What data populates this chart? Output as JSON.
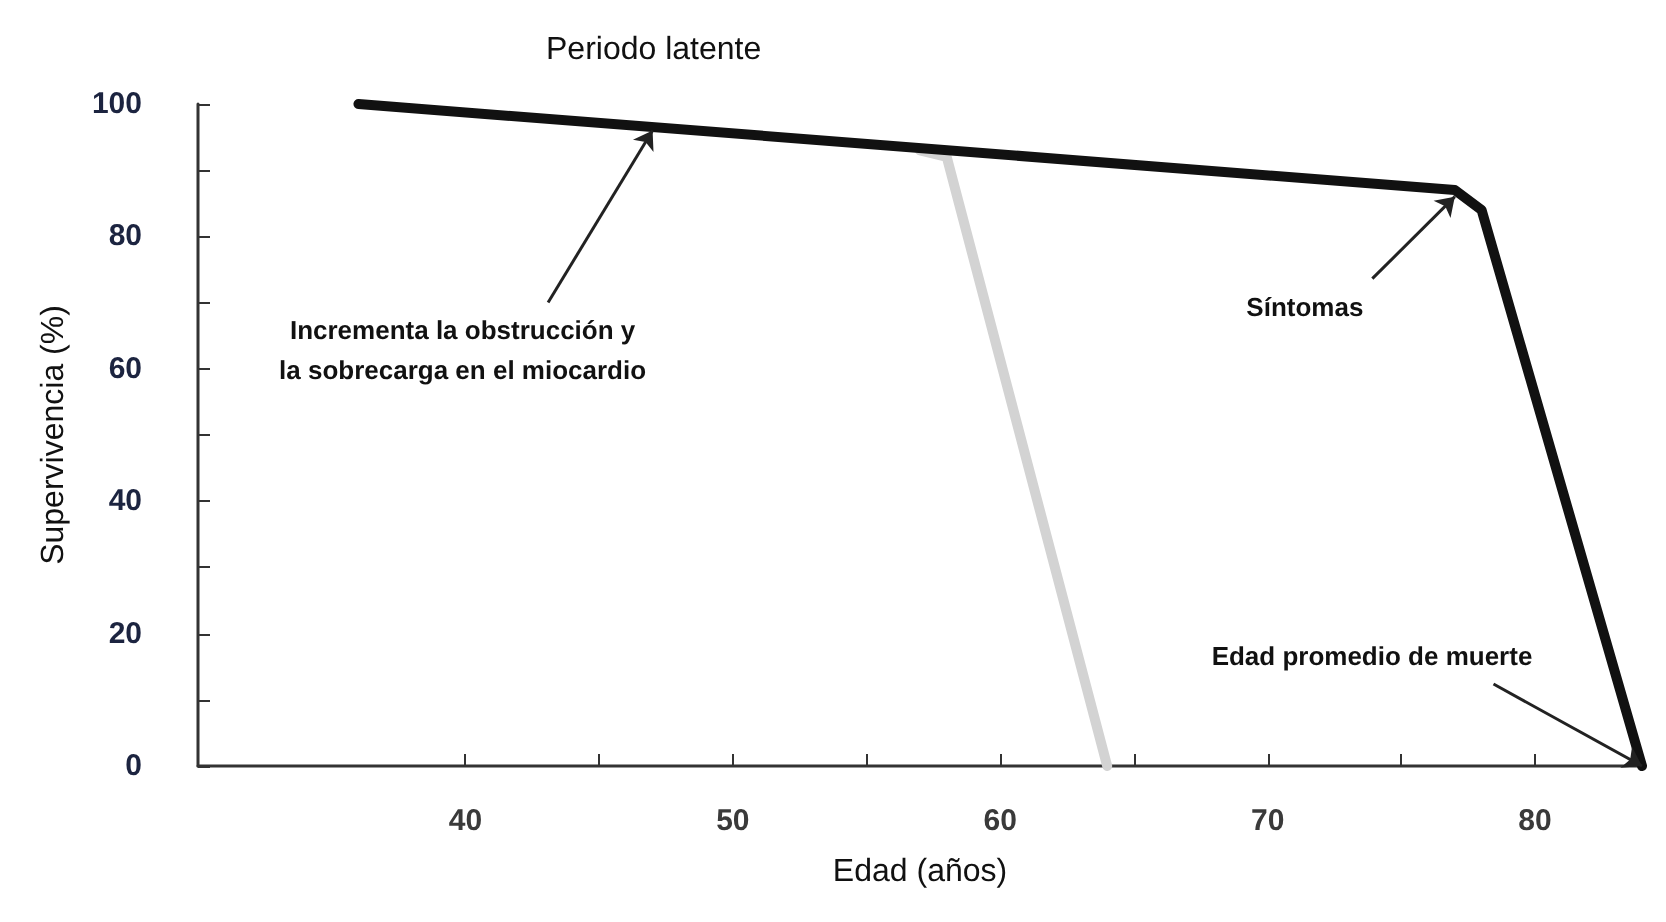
{
  "chart_data": {
    "type": "line",
    "title": "Periodo latente",
    "xlabel": "Edad (años)",
    "ylabel": "Supervivencia (%)",
    "series": [
      {
        "color": "#d3d3d3",
        "x": [
          57,
          58,
          64
        ],
        "values": [
          93,
          92,
          0
        ]
      },
      {
        "color": "#111111",
        "x": [
          36,
          77,
          78,
          84
        ],
        "values": [
          100,
          87,
          84,
          0
        ]
      }
    ],
    "xlim": [
      30,
      84
    ],
    "xticks": [
      40,
      {
        "value": 45,
        "label": null
      },
      50,
      {
        "value": 55,
        "label": null
      },
      60,
      {
        "value": 65,
        "label": null
      },
      70,
      {
        "value": 75,
        "label": null
      },
      80
    ],
    "ylim": [
      0,
      100
    ],
    "yticks": [
      0,
      {
        "value": 10,
        "label": null
      },
      20,
      {
        "value": 30,
        "label": null
      },
      40,
      {
        "value": 50,
        "label": null
      },
      60,
      {
        "value": 70,
        "label": null
      },
      80,
      {
        "value": 90,
        "label": null
      },
      100
    ],
    "annotations": [
      {
        "text": "Incrementa la obstrucción y\nla sobrecarga en el miocardio",
        "x": 47,
        "y": 96
      },
      {
        "text": "Síntomas",
        "x": 77,
        "y": 86
      },
      {
        "text": "Edad promedio de muerte",
        "x": 84,
        "y": 0
      }
    ],
    "grid": false,
    "marker": "none",
    "line_style": "solid"
  }
}
